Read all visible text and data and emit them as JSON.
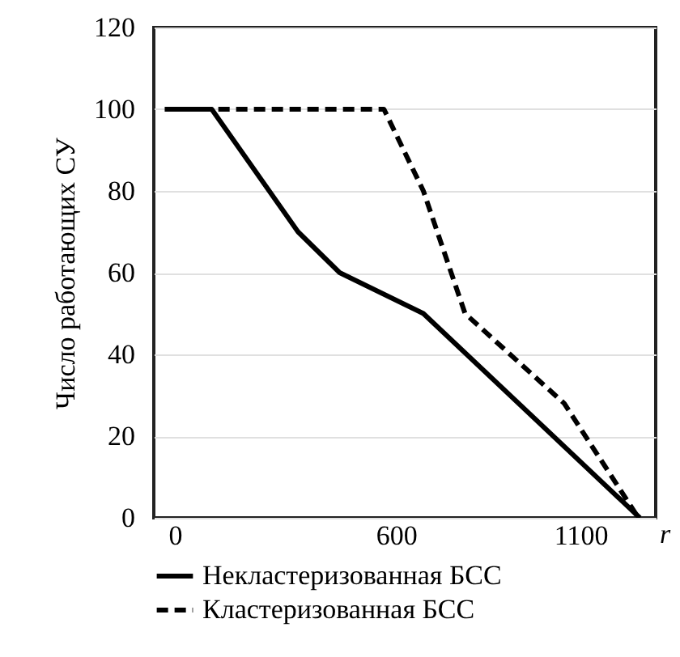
{
  "chart_data": {
    "type": "line",
    "xlabel": "r",
    "ylabel": "Число работающих СУ",
    "xlim": [
      -57,
      1304
    ],
    "xticks": [
      0,
      600,
      1100
    ],
    "ylim": [
      0,
      120
    ],
    "yticks": [
      0,
      20,
      40,
      60,
      80,
      100,
      120
    ],
    "grid": "y",
    "legend": "bottom",
    "series": [
      {
        "name": "Некластеризованная БСС",
        "color": "#000000",
        "line_style": "solid",
        "x": [
          -27,
          100,
          334,
          447,
          674,
          1261
        ],
        "values": [
          100,
          100,
          70,
          60,
          50,
          0
        ]
      },
      {
        "name": "Кластеризованная БСС",
        "color": "#000000",
        "line_style": "dashed",
        "x": [
          -27,
          567,
          674,
          787,
          1056,
          1257
        ],
        "values": [
          100,
          100,
          80,
          50,
          28,
          0
        ]
      }
    ]
  }
}
